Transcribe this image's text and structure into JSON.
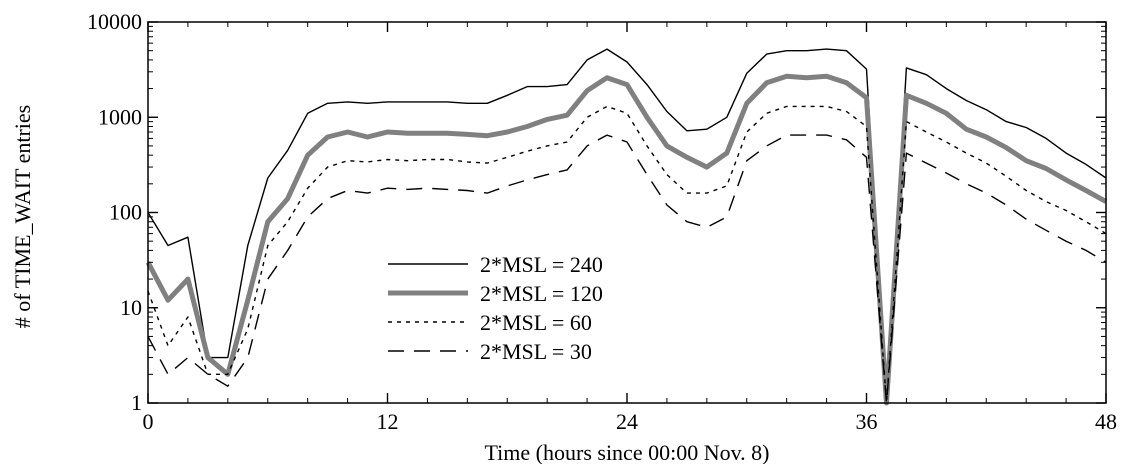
{
  "chart_data": {
    "type": "line",
    "title": "",
    "xlabel": "Time (hours since 00:00 Nov. 8)",
    "ylabel": "# of TIME_WAIT entries",
    "xlim": [
      0,
      48
    ],
    "ylim": [
      1,
      10000
    ],
    "yscale": "log",
    "grid": false,
    "legend_position": "center-left",
    "xticks": [
      0,
      12,
      24,
      36,
      48
    ],
    "xtick_labels": [
      "0",
      "12",
      "24",
      "36",
      "48"
    ],
    "yticks": [
      1,
      10,
      100,
      1000,
      10000
    ],
    "ytick_labels": [
      "1",
      "10",
      "100",
      "1000",
      "10000"
    ],
    "x": [
      0,
      1,
      2,
      3,
      4,
      5,
      6,
      7,
      8,
      9,
      10,
      11,
      12,
      13,
      14,
      15,
      16,
      17,
      18,
      19,
      20,
      21,
      22,
      23,
      24,
      25,
      26,
      27,
      28,
      29,
      30,
      31,
      32,
      33,
      34,
      35,
      36,
      37,
      38,
      39,
      40,
      41,
      42,
      43,
      44,
      45,
      46,
      47,
      48
    ],
    "series": [
      {
        "name": "2*MSL = 240",
        "color": "#000000",
        "style": "solid",
        "values": [
          100,
          45,
          55,
          3,
          3,
          45,
          230,
          450,
          1100,
          1400,
          1450,
          1400,
          1450,
          1450,
          1450,
          1450,
          1400,
          1400,
          1700,
          2100,
          2100,
          2200,
          4000,
          5200,
          3800,
          2200,
          1150,
          720,
          750,
          1000,
          2900,
          4600,
          5000,
          5000,
          5200,
          5000,
          3200,
          1,
          3300,
          2800,
          2000,
          1500,
          1200,
          900,
          780,
          600,
          420,
          320,
          230
        ]
      },
      {
        "name": "2*MSL = 120",
        "color": "#808080",
        "style": "solid-thick",
        "values": [
          30,
          12,
          20,
          3,
          2,
          12,
          80,
          140,
          400,
          620,
          700,
          620,
          700,
          680,
          680,
          680,
          660,
          640,
          700,
          800,
          950,
          1050,
          1900,
          2600,
          2200,
          1000,
          500,
          380,
          300,
          420,
          1400,
          2300,
          2700,
          2600,
          2700,
          2300,
          1600,
          1,
          1700,
          1400,
          1100,
          750,
          620,
          480,
          350,
          290,
          220,
          170,
          130
        ]
      },
      {
        "name": "2*MSL = 60",
        "color": "#000000",
        "style": "dotted",
        "values": [
          15,
          4,
          8,
          2,
          2,
          6,
          45,
          80,
          180,
          300,
          350,
          340,
          360,
          350,
          360,
          360,
          340,
          330,
          380,
          440,
          500,
          550,
          1000,
          1300,
          1100,
          500,
          250,
          160,
          160,
          190,
          700,
          1100,
          1300,
          1300,
          1300,
          1150,
          800,
          1,
          900,
          700,
          550,
          420,
          330,
          240,
          170,
          130,
          105,
          80,
          60
        ]
      },
      {
        "name": "2*MSL = 30",
        "color": "#000000",
        "style": "dashed",
        "values": [
          5,
          2,
          3,
          2,
          1.5,
          3,
          20,
          40,
          90,
          140,
          170,
          160,
          180,
          175,
          180,
          175,
          170,
          160,
          190,
          220,
          250,
          280,
          500,
          650,
          550,
          250,
          120,
          80,
          70,
          90,
          350,
          500,
          650,
          650,
          650,
          580,
          380,
          1,
          420,
          330,
          260,
          200,
          160,
          120,
          85,
          65,
          50,
          40,
          30
        ]
      }
    ]
  }
}
